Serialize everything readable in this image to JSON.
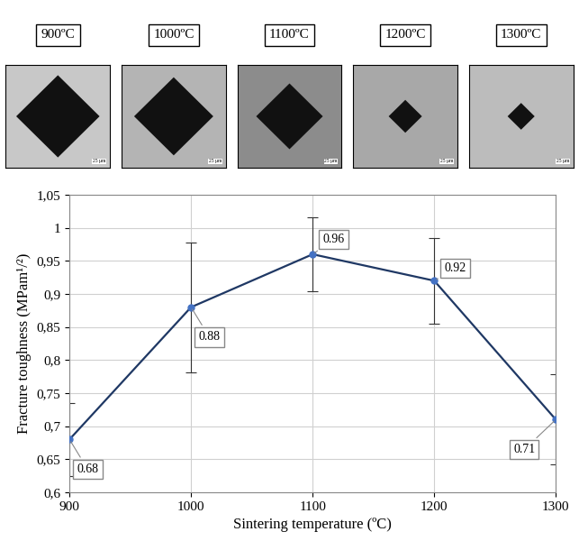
{
  "chart_data": {
    "type": "line",
    "x": [
      900,
      1000,
      1100,
      1200,
      1300
    ],
    "values": [
      0.68,
      0.88,
      0.96,
      0.92,
      0.71
    ],
    "errors": [
      0.055,
      0.098,
      0.056,
      0.065,
      0.068
    ],
    "xlabel": "Sintering temperature (ºC)",
    "ylabel": "Fracture toughness (MPam¹/²)",
    "xlim": [
      900,
      1300
    ],
    "ylim": [
      0.6,
      1.05
    ],
    "xticks": [
      900,
      1000,
      1100,
      1200,
      1300
    ],
    "yticks": [
      {
        "value": 0.6,
        "label": "0,6"
      },
      {
        "value": 0.65,
        "label": "0,65"
      },
      {
        "value": 0.7,
        "label": "0,7"
      },
      {
        "value": 0.75,
        "label": "0,75"
      },
      {
        "value": 0.8,
        "label": "0,8"
      },
      {
        "value": 0.85,
        "label": "0,85"
      },
      {
        "value": 0.9,
        "label": "0,9"
      },
      {
        "value": 0.95,
        "label": "0,95"
      },
      1,
      {
        "value": 1.05,
        "label": "1,05"
      }
    ],
    "grid": true,
    "data_labels": true,
    "color": "#1f3864",
    "marker": "o",
    "annotations": [
      "900ºC",
      "1000ºC",
      "1100ºC",
      "1200ºC",
      "1300ºC"
    ],
    "scale_bar": "25 µm"
  }
}
